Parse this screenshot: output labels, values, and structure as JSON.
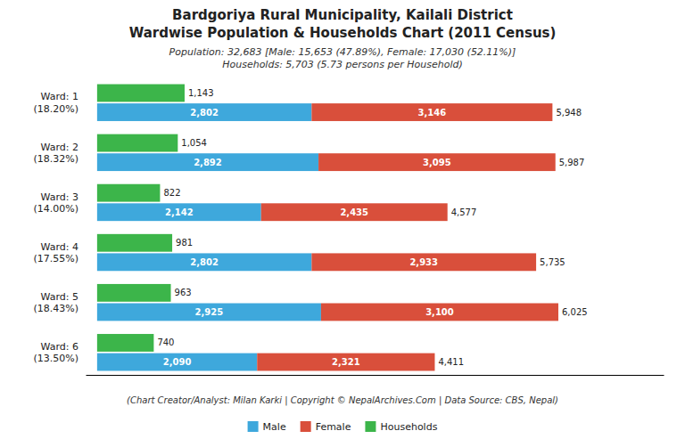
{
  "chart_data": {
    "type": "bar",
    "orientation": "horizontal",
    "stacked": true,
    "title": "Bardgoriya Rural Municipality, Kailali District\nWardwise Population & Households Chart (2011 Census)",
    "subtitle": "Population: 32,683 [Male: 15,653 (47.89%), Female: 17,030 (52.11%)]\nHouseholds: 5,703 (5.73 persons per Household)",
    "annotations": [
      "(Chart Creator/Analyst: Milan Karki | Copyright © NepalArchives.Com | Data Source: CBS, Nepal)"
    ],
    "categories": [
      "Ward: 1\n(18.20%)",
      "Ward: 2\n(18.32%)",
      "Ward: 3\n(14.00%)",
      "Ward: 4\n(17.55%)",
      "Ward: 5\n(18.43%)",
      "Ward: 6\n(13.50%)"
    ],
    "series": [
      {
        "name": "Male",
        "type": "stacked",
        "color": "#3ea8dc",
        "values": [
          2802,
          2892,
          2142,
          2802,
          2925,
          2090
        ],
        "value_labels": [
          "2,802",
          "2,892",
          "2,142",
          "2,802",
          "2,925",
          "2,090"
        ]
      },
      {
        "name": "Female",
        "type": "stacked",
        "color": "#d94f3b",
        "values": [
          3146,
          3095,
          2435,
          2933,
          3100,
          2321
        ],
        "value_labels": [
          "3,146",
          "3,095",
          "2,435",
          "2,933",
          "3,100",
          "2,321"
        ]
      },
      {
        "name": "Households",
        "type": "bar",
        "color": "#3cb54a",
        "values": [
          1143,
          1054,
          822,
          981,
          963,
          740
        ],
        "value_labels": [
          "1,143",
          "1,054",
          "822",
          "981",
          "963",
          "740"
        ]
      }
    ],
    "totals": [
      5948,
      5987,
      4577,
      5735,
      6025,
      4411
    ],
    "total_labels": [
      "5,948",
      "5,987",
      "4,577",
      "5,735",
      "6,025",
      "4,411"
    ],
    "xlim": [
      -150,
      7400
    ],
    "tick_labels": false,
    "grid": false,
    "data_labels": true,
    "legend": "bottom"
  }
}
